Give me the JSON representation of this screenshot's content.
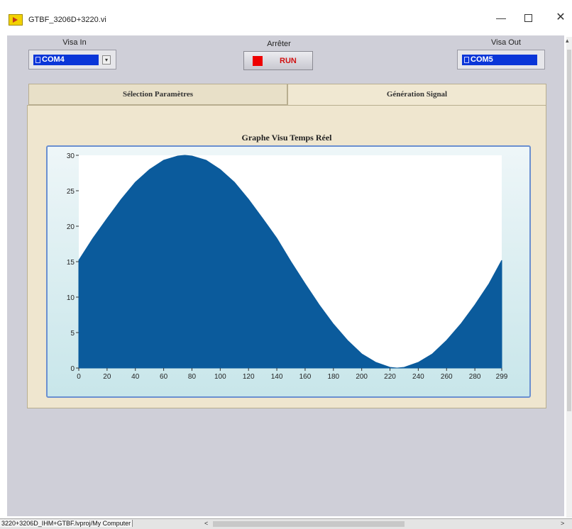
{
  "window": {
    "title": "GTBF_3206D+3220.vi"
  },
  "controls": {
    "visa_in": {
      "label": "Visa In",
      "value": "COM4"
    },
    "stop": {
      "label": "Arrêter",
      "button_text": "RUN"
    },
    "visa_out": {
      "label": "Visa Out",
      "value": "COM5"
    }
  },
  "tabs": [
    {
      "label": "Sélection Paramètres",
      "active": false
    },
    {
      "label": "Génération Signal",
      "active": true
    }
  ],
  "graph": {
    "title": "Graphe Visu Temps Réel"
  },
  "chart_data": {
    "type": "area",
    "title": "Graphe Visu Temps Réel",
    "xlabel": "",
    "ylabel": "",
    "xlim": [
      0,
      299
    ],
    "ylim": [
      0,
      30
    ],
    "x_ticks": [
      0,
      20,
      40,
      60,
      80,
      100,
      120,
      140,
      160,
      180,
      200,
      220,
      240,
      260,
      280,
      299
    ],
    "y_ticks": [
      0,
      5,
      10,
      15,
      20,
      25,
      30
    ],
    "fill_color": "#0b5b9c",
    "series": [
      {
        "x": [
          0,
          10,
          20,
          30,
          40,
          50,
          60,
          70,
          75,
          80,
          90,
          100,
          110,
          120,
          130,
          140,
          150,
          160,
          170,
          180,
          190,
          200,
          210,
          220,
          225,
          230,
          240,
          250,
          260,
          270,
          280,
          290,
          299
        ],
        "values": [
          15.2,
          18.3,
          21.1,
          23.8,
          26.2,
          28.0,
          29.3,
          29.9,
          30.0,
          29.9,
          29.3,
          28.0,
          26.2,
          23.8,
          21.1,
          18.3,
          15.0,
          11.9,
          8.9,
          6.2,
          3.9,
          2.0,
          0.8,
          0.1,
          0.0,
          0.1,
          0.8,
          2.0,
          3.9,
          6.2,
          8.9,
          11.9,
          15.2
        ]
      }
    ]
  },
  "statusbar": {
    "path": "3220+3206D_IHM+GTBF.lvproj/My Computer"
  }
}
